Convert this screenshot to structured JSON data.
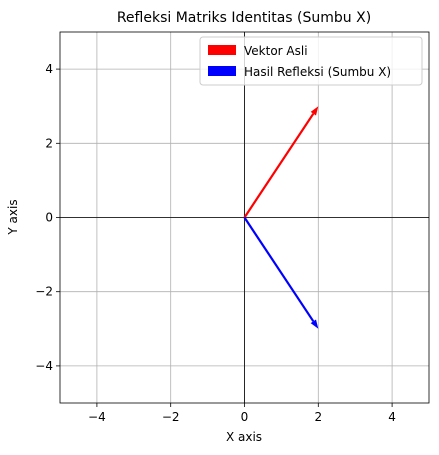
{
  "chart_data": {
    "type": "quiver",
    "title": "Refleksi Matriks Identitas (Sumbu X)",
    "xlabel": "X axis",
    "ylabel": "Y axis",
    "xlim": [
      -5,
      5
    ],
    "ylim": [
      -5,
      5
    ],
    "xticks": [
      -4,
      -2,
      0,
      2,
      4
    ],
    "yticks": [
      -4,
      -2,
      0,
      2,
      4
    ],
    "tick_labels_x": [
      "−4",
      "−2",
      "0",
      "2",
      "4"
    ],
    "tick_labels_y": [
      "−4",
      "−2",
      "0",
      "2",
      "4"
    ],
    "grid": true,
    "legend_position": "top-right",
    "series": [
      {
        "name": "Vektor Asli",
        "origin": [
          0,
          0
        ],
        "vector": [
          2,
          3
        ],
        "color": "#ff0000"
      },
      {
        "name": "Hasil Refleksi (Sumbu X)",
        "origin": [
          0,
          0
        ],
        "vector": [
          2,
          -3
        ],
        "color": "#0000ff"
      }
    ]
  }
}
